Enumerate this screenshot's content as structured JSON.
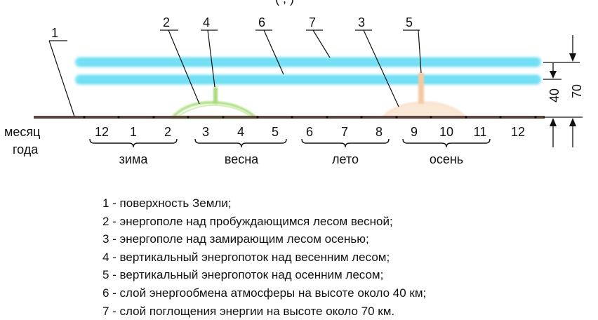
{
  "header_fragment": "(   ,    )",
  "side_caption": {
    "line1": "месяц",
    "line2": "года"
  },
  "months": [
    "12",
    "1",
    "2",
    "3",
    "4",
    "5",
    "6",
    "7",
    "8",
    "9",
    "10",
    "11",
    "12"
  ],
  "seasons": [
    "зима",
    "весна",
    "лето",
    "осень"
  ],
  "callouts": [
    "1",
    "2",
    "4",
    "6",
    "7",
    "3",
    "5"
  ],
  "dimensions": {
    "lower": "40",
    "upper": "70"
  },
  "legend": [
    "1 - поверхность Земли;",
    "2 - энергополе над пробуждающимся лесом весной;",
    "3 - энергополе над замирающим лесом осенью;",
    "4 - вертикальный энергопоток над весенним лесом;",
    "5 - вертикальный энергопоток над осенним лесом;",
    "6 - слой энергообмена атмосферы на высоте около 40 км;",
    "7 - слой поглощения энергии на высоте около 70 км."
  ],
  "colors": {
    "ground": "#5a4540",
    "layers": "#22ccee",
    "spring_field": "#a8dc7a",
    "autumn_field": "#f5c9a3"
  }
}
